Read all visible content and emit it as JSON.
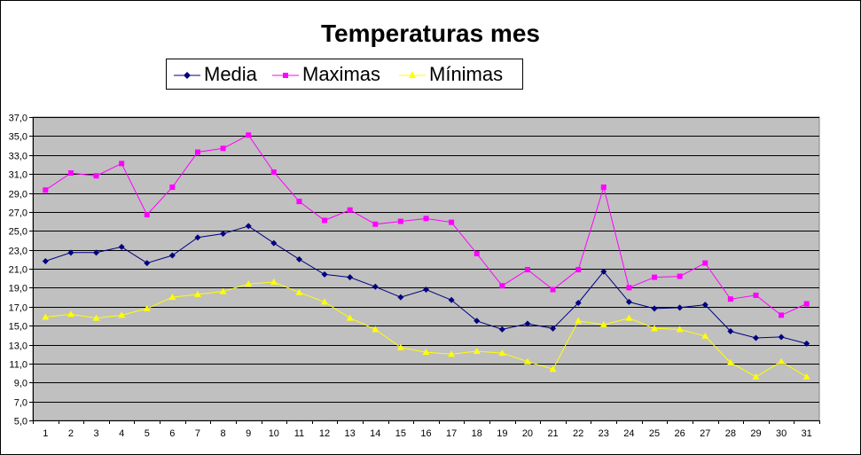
{
  "chart_data": {
    "type": "line",
    "title": "Temperaturas mes",
    "xlabel": "",
    "ylabel": "",
    "ylim": [
      5.0,
      37.0
    ],
    "y_ticks": [
      "37,0",
      "35,0",
      "33,0",
      "31,0",
      "29,0",
      "27,0",
      "25,0",
      "23,0",
      "21,0",
      "19,0",
      "17,0",
      "15,0",
      "13,0",
      "11,0",
      "9,0",
      "7,0",
      "5,0"
    ],
    "categories": [
      "1",
      "2",
      "3",
      "4",
      "5",
      "6",
      "7",
      "8",
      "9",
      "10",
      "11",
      "12",
      "13",
      "14",
      "15",
      "16",
      "17",
      "18",
      "19",
      "20",
      "21",
      "22",
      "23",
      "24",
      "25",
      "26",
      "27",
      "28",
      "29",
      "30",
      "31"
    ],
    "grid": true,
    "legend_position": "top",
    "plot_background": "#c0c0c0",
    "series": [
      {
        "name": "Media",
        "color": "#000080",
        "marker": "diamond",
        "values": [
          21.8,
          22.7,
          22.7,
          23.3,
          21.6,
          22.4,
          24.3,
          24.7,
          25.5,
          23.7,
          22.0,
          20.4,
          20.1,
          19.1,
          18.0,
          18.8,
          17.7,
          15.5,
          14.6,
          15.2,
          14.7,
          17.4,
          20.7,
          17.5,
          16.8,
          16.9,
          17.2,
          14.4,
          13.7,
          13.8,
          13.1
        ]
      },
      {
        "name": "Maximas",
        "color": "#ff00ff",
        "marker": "square",
        "values": [
          29.3,
          31.1,
          30.8,
          32.1,
          26.7,
          29.6,
          33.3,
          33.7,
          35.1,
          31.2,
          28.1,
          26.1,
          27.2,
          25.7,
          26.0,
          26.3,
          25.9,
          22.6,
          19.2,
          20.9,
          18.8,
          20.9,
          29.6,
          19.0,
          20.1,
          20.2,
          21.6,
          17.8,
          18.2,
          16.1,
          17.3
        ]
      },
      {
        "name": "Mínimas",
        "color": "#ffff00",
        "marker": "triangle",
        "values": [
          15.9,
          16.2,
          15.8,
          16.1,
          16.8,
          18.0,
          18.3,
          18.6,
          19.4,
          19.6,
          18.5,
          17.5,
          15.8,
          14.6,
          12.7,
          12.2,
          12.0,
          12.3,
          12.1,
          11.2,
          10.4,
          15.5,
          15.1,
          15.8,
          14.7,
          14.6,
          13.9,
          11.1,
          9.6,
          11.2,
          9.6
        ]
      }
    ]
  }
}
